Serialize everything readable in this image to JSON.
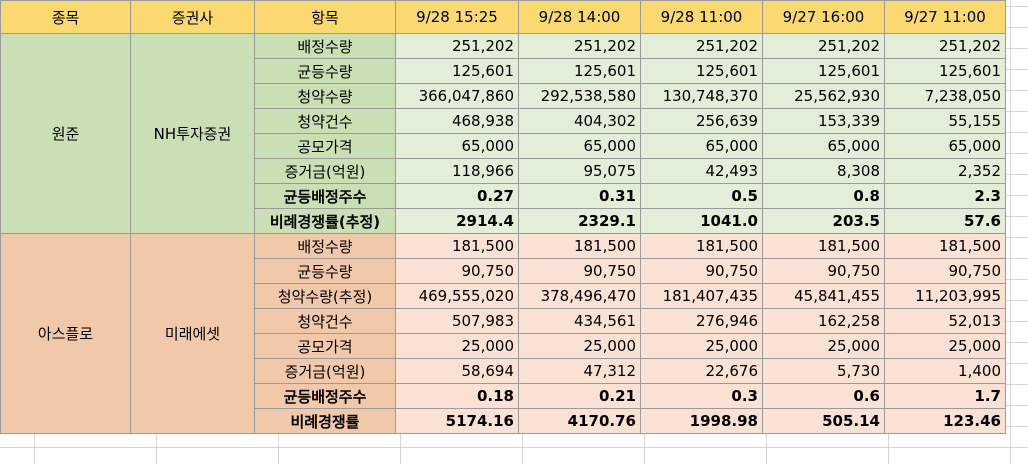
{
  "headers": [
    "종목",
    "증권사",
    "항목",
    "9/28 15:25",
    "9/28 14:00",
    "9/28 11:00",
    "9/27 16:00",
    "9/27 11:00"
  ],
  "groups": [
    {
      "stock": "원준",
      "broker": "NH투자증권",
      "rows": [
        {
          "item": "배정수량",
          "values": [
            "251,202",
            "251,202",
            "251,202",
            "251,202",
            "251,202"
          ],
          "bold": false
        },
        {
          "item": "균등수량",
          "values": [
            "125,601",
            "125,601",
            "125,601",
            "125,601",
            "125,601"
          ],
          "bold": false
        },
        {
          "item": "청약수량",
          "values": [
            "366,047,860",
            "292,538,580",
            "130,748,370",
            "25,562,930",
            "7,238,050"
          ],
          "bold": false
        },
        {
          "item": "청약건수",
          "values": [
            "468,938",
            "404,302",
            "256,639",
            "153,339",
            "55,155"
          ],
          "bold": false
        },
        {
          "item": "공모가격",
          "values": [
            "65,000",
            "65,000",
            "65,000",
            "65,000",
            "65,000"
          ],
          "bold": false
        },
        {
          "item": "증거금(억원)",
          "values": [
            "118,966",
            "95,075",
            "42,493",
            "8,308",
            "2,352"
          ],
          "bold": false
        },
        {
          "item": "균등배정주수",
          "values": [
            "0.27",
            "0.31",
            "0.5",
            "0.8",
            "2.3"
          ],
          "bold": true
        },
        {
          "item": "비례경쟁률(추정)",
          "values": [
            "2914.4",
            "2329.1",
            "1041.0",
            "203.5",
            "57.6"
          ],
          "bold": true
        }
      ]
    },
    {
      "stock": "아스플로",
      "broker": "미래에셋",
      "rows": [
        {
          "item": "배정수량",
          "values": [
            "181,500",
            "181,500",
            "181,500",
            "181,500",
            "181,500"
          ],
          "bold": false
        },
        {
          "item": "균등수량",
          "values": [
            "90,750",
            "90,750",
            "90,750",
            "90,750",
            "90,750"
          ],
          "bold": false
        },
        {
          "item": "청약수량(추정)",
          "values": [
            "469,555,020",
            "378,496,470",
            "181,407,435",
            "45,841,455",
            "11,203,995"
          ],
          "bold": false
        },
        {
          "item": "청약건수",
          "values": [
            "507,983",
            "434,561",
            "276,946",
            "162,258",
            "52,013"
          ],
          "bold": false
        },
        {
          "item": "공모가격",
          "values": [
            "25,000",
            "25,000",
            "25,000",
            "25,000",
            "25,000"
          ],
          "bold": false
        },
        {
          "item": "증거금(억원)",
          "values": [
            "58,694",
            "47,312",
            "22,676",
            "5,730",
            "1,400"
          ],
          "bold": false
        },
        {
          "item": "균등배정주수",
          "values": [
            "0.18",
            "0.21",
            "0.3",
            "0.6",
            "1.7"
          ],
          "bold": true
        },
        {
          "item": "비례경쟁률",
          "values": [
            "5174.16",
            "4170.76",
            "1998.98",
            "505.14",
            "123.46"
          ],
          "bold": true
        }
      ]
    }
  ]
}
